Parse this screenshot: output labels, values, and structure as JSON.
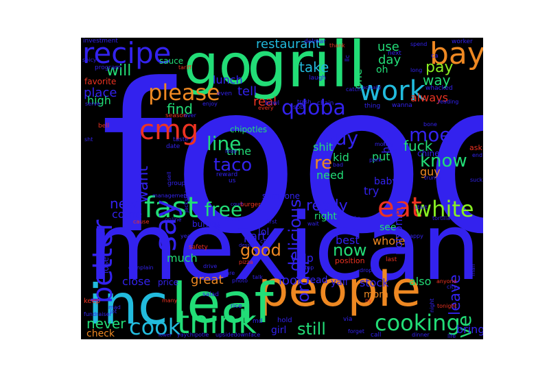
{
  "palette": {
    "blue": "#3322ee",
    "green": "#22dd77",
    "lime": "#88ee22",
    "cyan": "#22bbdd",
    "orange": "#ee8822",
    "red": "#ee3322"
  },
  "words": [
    {
      "text": "food",
      "color": "blue"
    },
    {
      "text": "mexican",
      "color": "blue"
    },
    {
      "text": "people",
      "color": "orange"
    },
    {
      "text": "leaf",
      "color": "green"
    },
    {
      "text": "inc",
      "color": "cyan"
    },
    {
      "text": "go",
      "color": "green"
    },
    {
      "text": "grill",
      "color": "green"
    },
    {
      "text": "recipe",
      "color": "blue"
    },
    {
      "text": "bay",
      "color": "orange"
    },
    {
      "text": "think",
      "color": "green"
    },
    {
      "text": "work",
      "color": "cyan"
    },
    {
      "text": "cmg",
      "color": "red"
    },
    {
      "text": "fast",
      "color": "green"
    },
    {
      "text": "eat",
      "color": "red"
    },
    {
      "text": "please",
      "color": "orange"
    },
    {
      "text": "cook",
      "color": "cyan"
    },
    {
      "text": "cooking",
      "color": "green"
    },
    {
      "text": "qdoba",
      "color": "blue"
    },
    {
      "text": "say",
      "color": "blue"
    },
    {
      "text": "better",
      "color": "blue"
    },
    {
      "text": "free",
      "color": "green"
    },
    {
      "text": "white",
      "color": "lime"
    },
    {
      "text": "taco",
      "color": "blue"
    },
    {
      "text": "line",
      "color": "green"
    },
    {
      "text": "buy",
      "color": "blue"
    },
    {
      "text": "moe",
      "color": "blue"
    },
    {
      "text": "know",
      "color": "green"
    },
    {
      "text": "give",
      "color": "green"
    },
    {
      "text": "delicious",
      "color": "blue"
    },
    {
      "text": "order",
      "color": "blue"
    },
    {
      "text": "good",
      "color": "orange"
    },
    {
      "text": "still",
      "color": "green"
    },
    {
      "text": "now",
      "color": "green"
    },
    {
      "text": "want",
      "color": "blue"
    },
    {
      "text": "re",
      "color": "orange"
    },
    {
      "text": "really",
      "color": "blue"
    },
    {
      "text": "leave",
      "color": "blue"
    },
    {
      "text": "never",
      "color": "green"
    },
    {
      "text": "restaurant",
      "color": "cyan"
    },
    {
      "text": "fuck",
      "color": "green"
    },
    {
      "text": "take",
      "color": "cyan"
    },
    {
      "text": "will",
      "color": "green"
    },
    {
      "text": "pay",
      "color": "lime"
    },
    {
      "text": "new",
      "color": "blue"
    },
    {
      "text": "great",
      "color": "orange"
    },
    {
      "text": "look",
      "color": "blue"
    },
    {
      "text": "use",
      "color": "green"
    },
    {
      "text": "day",
      "color": "green"
    },
    {
      "text": "way",
      "color": "green"
    },
    {
      "text": "always",
      "color": "red"
    },
    {
      "text": "find",
      "color": "green"
    },
    {
      "text": "place",
      "color": "blue"
    },
    {
      "text": "high",
      "color": "green"
    },
    {
      "text": "tell",
      "color": "blue"
    },
    {
      "text": "lunch",
      "color": "blue"
    },
    {
      "text": "real",
      "color": "red"
    },
    {
      "text": "come",
      "color": "blue"
    },
    {
      "text": "time",
      "color": "green"
    },
    {
      "text": "need",
      "color": "green"
    },
    {
      "text": "try",
      "color": "blue"
    },
    {
      "text": "part",
      "color": "blue"
    },
    {
      "text": "much",
      "color": "green"
    },
    {
      "text": "close",
      "color": "blue"
    },
    {
      "text": "also",
      "color": "green"
    },
    {
      "text": "stock",
      "color": "blue"
    },
    {
      "text": "best",
      "color": "blue"
    },
    {
      "text": "yelp",
      "color": "blue"
    },
    {
      "text": "whole",
      "color": "orange"
    },
    {
      "text": "shit",
      "color": "green"
    },
    {
      "text": "kid",
      "color": "green"
    },
    {
      "text": "guy",
      "color": "orange"
    },
    {
      "text": "put",
      "color": "green"
    },
    {
      "text": "hate",
      "color": "blue"
    },
    {
      "text": "one",
      "color": "green"
    },
    {
      "text": "oh",
      "color": "green"
    },
    {
      "text": "poisoning",
      "color": "blue"
    },
    {
      "text": "read",
      "color": "blue"
    },
    {
      "text": "mom",
      "color": "orange"
    },
    {
      "text": "bring",
      "color": "blue"
    },
    {
      "text": "check",
      "color": "orange"
    },
    {
      "text": "girl",
      "color": "blue"
    },
    {
      "text": "lol",
      "color": "blue"
    },
    {
      "text": "right",
      "color": "green"
    },
    {
      "text": "chinese",
      "color": "blue"
    },
    {
      "text": "baby",
      "color": "blue"
    },
    {
      "text": "see",
      "color": "green"
    },
    {
      "text": "yall",
      "color": "blue"
    },
    {
      "text": "favorite",
      "color": "red"
    },
    {
      "text": "sauce",
      "color": "green"
    },
    {
      "text": "chipotles",
      "color": "green"
    },
    {
      "text": "someone",
      "color": "blue"
    },
    {
      "text": "burrito",
      "color": "blue"
    },
    {
      "text": "lose",
      "color": "blue"
    },
    {
      "text": "hold",
      "color": "blue"
    },
    {
      "text": "keep",
      "color": "red"
    },
    {
      "text": "price",
      "color": "blue"
    },
    {
      "text": "position",
      "color": "red"
    },
    {
      "text": "investment",
      "color": "blue"
    },
    {
      "text": "delmar",
      "color": "blue"
    },
    {
      "text": "worker",
      "color": "blue"
    },
    {
      "text": "spend",
      "color": "blue"
    },
    {
      "text": "program",
      "color": "blue"
    },
    {
      "text": "tariff",
      "color": "red"
    },
    {
      "text": "llc",
      "color": "blue"
    },
    {
      "text": "laugh",
      "color": "blue"
    },
    {
      "text": "next",
      "color": "blue"
    },
    {
      "text": "long",
      "color": "blue"
    },
    {
      "text": "whacked",
      "color": "blue"
    },
    {
      "text": "bowl",
      "color": "blue"
    },
    {
      "text": "sob",
      "color": "blue"
    },
    {
      "text": "chain",
      "color": "blue"
    },
    {
      "text": "thing",
      "color": "blue"
    },
    {
      "text": "wanna",
      "color": "blue"
    },
    {
      "text": "season",
      "color": "red"
    },
    {
      "text": "bell",
      "color": "red"
    },
    {
      "text": "taste",
      "color": "blue"
    },
    {
      "text": "date",
      "color": "blue"
    },
    {
      "text": "loop",
      "color": "blue"
    },
    {
      "text": "money",
      "color": "blue"
    },
    {
      "text": "live",
      "color": "blue"
    },
    {
      "text": "pork",
      "color": "blue"
    },
    {
      "text": "bad",
      "color": "blue"
    },
    {
      "text": "reward",
      "color": "blue"
    },
    {
      "text": "us",
      "color": "blue"
    },
    {
      "text": "sell",
      "color": "blue"
    },
    {
      "text": "group",
      "color": "blue"
    },
    {
      "text": "management",
      "color": "blue"
    },
    {
      "text": "ask",
      "color": "red"
    },
    {
      "text": "trump",
      "color": "blue"
    },
    {
      "text": "suck",
      "color": "blue"
    },
    {
      "text": "online",
      "color": "blue"
    },
    {
      "text": "friend",
      "color": "blue"
    },
    {
      "text": "first",
      "color": "blue"
    },
    {
      "text": "wait",
      "color": "blue"
    },
    {
      "text": "start",
      "color": "blue"
    },
    {
      "text": "stake",
      "color": "blue"
    },
    {
      "text": "authentic",
      "color": "blue"
    },
    {
      "text": "tortilla",
      "color": "blue"
    },
    {
      "text": "safety",
      "color": "red"
    },
    {
      "text": "salad",
      "color": "blue"
    },
    {
      "text": "pizza",
      "color": "red"
    },
    {
      "text": "cut",
      "color": "blue"
    },
    {
      "text": "dessert",
      "color": "blue"
    },
    {
      "text": "happy",
      "color": "blue"
    },
    {
      "text": "last",
      "color": "red"
    },
    {
      "text": "complain",
      "color": "blue"
    },
    {
      "text": "drive",
      "color": "blue"
    },
    {
      "text": "photo",
      "color": "blue"
    },
    {
      "text": "talk",
      "color": "blue"
    },
    {
      "text": "share",
      "color": "blue"
    },
    {
      "text": "drop",
      "color": "blue"
    },
    {
      "text": "stop",
      "color": "blue"
    },
    {
      "text": "fundraiser",
      "color": "blue"
    },
    {
      "text": "many",
      "color": "red"
    },
    {
      "text": "rice",
      "color": "blue"
    },
    {
      "text": "md",
      "color": "blue"
    },
    {
      "text": "via",
      "color": "blue"
    },
    {
      "text": "ny",
      "color": "red"
    },
    {
      "text": "call",
      "color": "blue"
    },
    {
      "text": "dinner",
      "color": "blue"
    },
    {
      "text": "forget",
      "color": "blue"
    },
    {
      "text": "upsidedownface",
      "color": "blue"
    },
    {
      "text": "yaychipotle",
      "color": "blue"
    },
    {
      "text": "tonight",
      "color": "red"
    },
    {
      "text": "city",
      "color": "blue"
    },
    {
      "text": "life",
      "color": "blue"
    },
    {
      "text": "man",
      "color": "blue"
    },
    {
      "text": "ever",
      "color": "blue"
    },
    {
      "text": "burger",
      "color": "red"
    },
    {
      "text": "court",
      "color": "blue"
    },
    {
      "text": "even",
      "color": "blue"
    },
    {
      "text": "enjoy",
      "color": "blue"
    },
    {
      "text": "every",
      "color": "red"
    },
    {
      "text": "trash",
      "color": "blue"
    },
    {
      "text": "bone",
      "color": "blue"
    },
    {
      "text": "spicy",
      "color": "blue"
    },
    {
      "text": "catch",
      "color": "blue"
    },
    {
      "text": "lower",
      "color": "blue"
    },
    {
      "text": "thank",
      "color": "red"
    },
    {
      "text": "vetr",
      "color": "blue"
    },
    {
      "text": "sht",
      "color": "blue"
    },
    {
      "text": "lot",
      "color": "blue"
    },
    {
      "text": "year",
      "color": "blue"
    },
    {
      "text": "night",
      "color": "blue"
    },
    {
      "text": "anyone",
      "color": "red"
    },
    {
      "text": "serve",
      "color": "blue"
    },
    {
      "text": "actually",
      "color": "blue"
    },
    {
      "text": "reading",
      "color": "blue"
    },
    {
      "text": "mad",
      "color": "blue"
    },
    {
      "text": "end",
      "color": "blue"
    },
    {
      "text": "ca",
      "color": "blue"
    },
    {
      "text": "bc",
      "color": "blue"
    },
    {
      "text": "cause",
      "color": "red"
    },
    {
      "text": "jacksfila",
      "color": "blue"
    }
  ]
}
